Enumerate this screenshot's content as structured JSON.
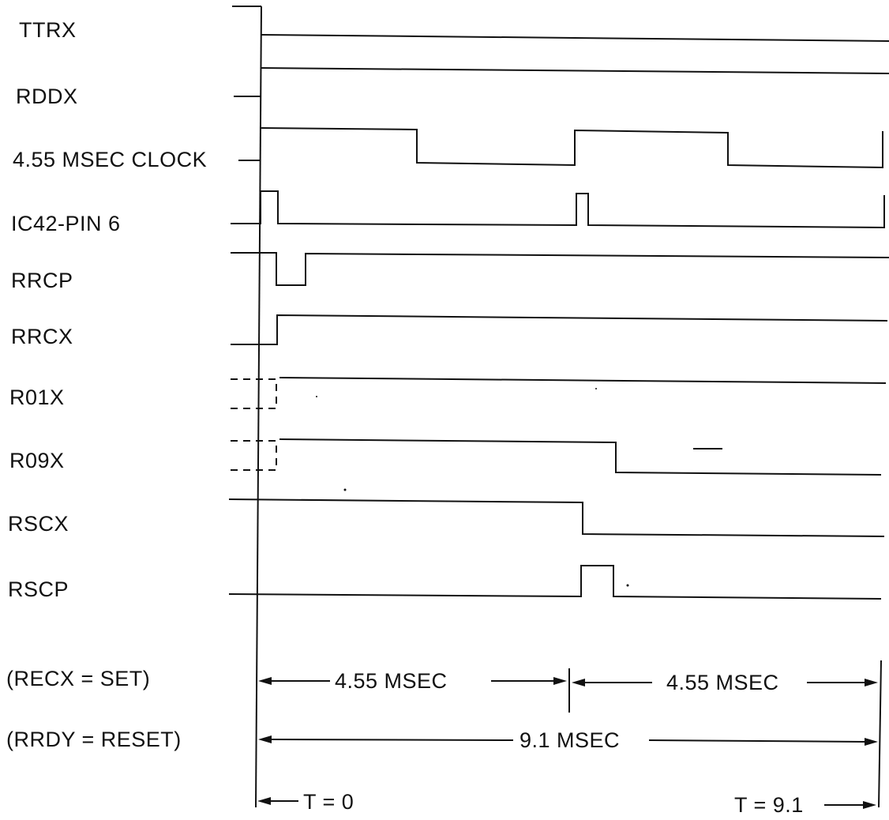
{
  "signals": [
    {
      "id": "ttrx",
      "label": "TTRX"
    },
    {
      "id": "rddx",
      "label": "RDDX"
    },
    {
      "id": "clock",
      "label": "4.55 MSEC CLOCK"
    },
    {
      "id": "ic42",
      "label": "IC42-PIN 6"
    },
    {
      "id": "rrcp",
      "label": "RRCP"
    },
    {
      "id": "rrcx",
      "label": "RRCX"
    },
    {
      "id": "r01x",
      "label": "R01X"
    },
    {
      "id": "r09x",
      "label": "R09X"
    },
    {
      "id": "rscx",
      "label": "RSCX"
    },
    {
      "id": "rscp",
      "label": "RSCP"
    }
  ],
  "conditions": {
    "recx": "(RECX  = SET)",
    "rrdy": "(RRDY = RESET)"
  },
  "dimensions": {
    "first_half": "4.55 MSEC",
    "second_half": "4.55 MSEC",
    "total": "9.1 MSEC",
    "t_start": "T = 0",
    "t_end": "T = 9.1"
  }
}
